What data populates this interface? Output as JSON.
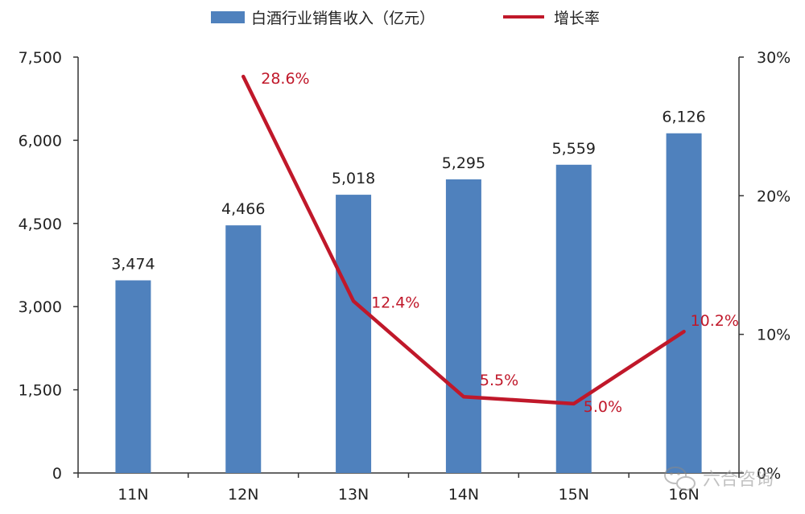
{
  "chart_data": {
    "type": "bar",
    "categories": [
      "11N",
      "12N",
      "13N",
      "14N",
      "15N",
      "16N"
    ],
    "series": [
      {
        "name": "白酒行业销售收入（亿元）",
        "type": "bar",
        "axis": "left",
        "values": [
          3474,
          4466,
          5018,
          5295,
          5559,
          6126
        ],
        "labels": [
          "3,474",
          "4,466",
          "5,018",
          "5,295",
          "5,559",
          "6,126"
        ],
        "color": "#4f81bd"
      },
      {
        "name": "增长率",
        "type": "line",
        "axis": "right",
        "values": [
          null,
          28.6,
          12.4,
          5.5,
          5.0,
          10.2
        ],
        "labels": [
          "",
          "28.6%",
          "12.4%",
          "5.5%",
          "5.0%",
          "10.2%"
        ],
        "color": "#c0182a"
      }
    ],
    "left_axis": {
      "ylim": [
        0,
        7500
      ],
      "ticks": [
        0,
        1500,
        3000,
        4500,
        6000,
        7500
      ],
      "tick_labels": [
        "0",
        "1,500",
        "3,000",
        "4,500",
        "6,000",
        "7,500"
      ]
    },
    "right_axis": {
      "ylim": [
        0,
        30
      ],
      "ticks": [
        0,
        10,
        20,
        30
      ],
      "tick_labels": [
        "0%",
        "10%",
        "20%",
        "30%"
      ]
    },
    "grid": false,
    "legend_position": "top-center"
  },
  "watermark": {
    "text": "六合咨询"
  }
}
